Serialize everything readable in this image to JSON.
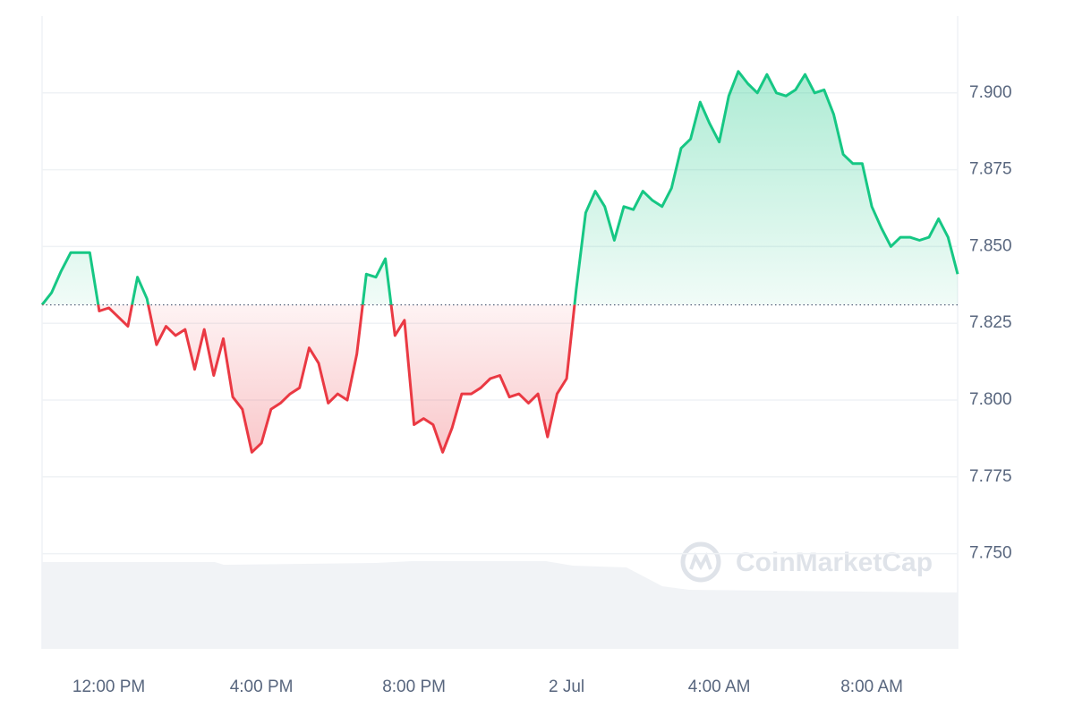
{
  "chart_data": {
    "type": "line",
    "watermark": "CoinMarketCap",
    "categories": [
      null,
      null,
      null,
      null,
      null,
      null,
      null,
      "12:00 PM",
      null,
      null,
      null,
      null,
      null,
      null,
      null,
      null,
      null,
      null,
      null,
      null,
      null,
      null,
      null,
      "4:00 PM",
      null,
      null,
      null,
      null,
      null,
      null,
      null,
      null,
      null,
      null,
      null,
      null,
      null,
      null,
      null,
      "8:00 PM",
      null,
      null,
      null,
      null,
      null,
      null,
      null,
      null,
      null,
      null,
      null,
      null,
      null,
      null,
      null,
      "2 Jul",
      null,
      null,
      null,
      null,
      null,
      null,
      null,
      null,
      null,
      null,
      null,
      null,
      null,
      null,
      null,
      "4:00 AM",
      null,
      null,
      null,
      null,
      null,
      null,
      null,
      null,
      null,
      null,
      null,
      null,
      null,
      null,
      null,
      "8:00 AM",
      null,
      null,
      null,
      null,
      null,
      null,
      null,
      null,
      null
    ],
    "values": [
      7.831,
      7.835,
      7.842,
      7.848,
      7.848,
      7.848,
      7.829,
      7.83,
      7.827,
      7.824,
      7.84,
      7.833,
      7.818,
      7.824,
      7.821,
      7.823,
      7.81,
      7.823,
      7.808,
      7.82,
      7.801,
      7.797,
      7.783,
      7.786,
      7.797,
      7.799,
      7.802,
      7.804,
      7.817,
      7.812,
      7.799,
      7.802,
      7.8,
      7.815,
      7.841,
      7.84,
      7.846,
      7.821,
      7.826,
      7.792,
      7.794,
      7.792,
      7.783,
      7.791,
      7.802,
      7.802,
      7.804,
      7.807,
      7.808,
      7.801,
      7.802,
      7.799,
      7.802,
      7.788,
      7.802,
      7.807,
      7.836,
      7.861,
      7.868,
      7.863,
      7.852,
      7.863,
      7.862,
      7.868,
      7.865,
      7.863,
      7.869,
      7.882,
      7.885,
      7.897,
      7.89,
      7.884,
      7.899,
      7.907,
      7.903,
      7.9,
      7.906,
      7.9,
      7.899,
      7.901,
      7.906,
      7.9,
      7.901,
      7.893,
      7.88,
      7.877,
      7.877,
      7.863,
      7.856,
      7.85,
      7.853,
      7.853,
      7.852,
      7.853,
      7.859,
      7.853,
      7.841
    ],
    "baseline": 7.831,
    "up_color": "#16c784",
    "down_color": "#ea3943",
    "ylim": [
      7.719,
      7.925
    ],
    "yticks": [
      {
        "value": 7.75,
        "label": "7.750"
      },
      {
        "value": 7.775,
        "label": "7.775"
      },
      {
        "value": 7.8,
        "label": "7.800"
      },
      {
        "value": 7.825,
        "label": "7.825"
      },
      {
        "value": 7.85,
        "label": "7.850"
      },
      {
        "value": 7.875,
        "label": "7.875"
      },
      {
        "value": 7.9,
        "label": "7.900"
      }
    ],
    "grid": true
  }
}
